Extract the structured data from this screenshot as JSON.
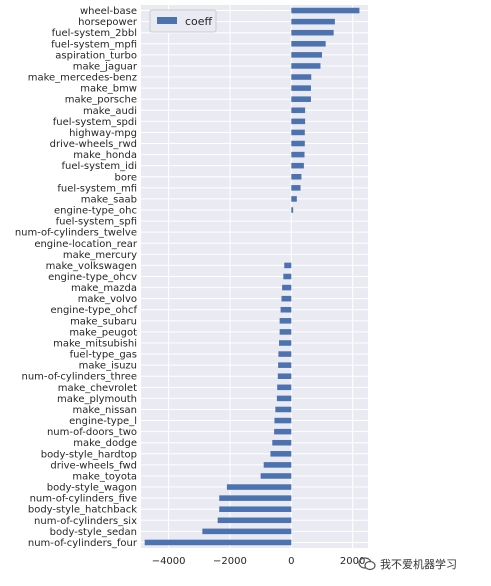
{
  "chart_data": {
    "type": "bar",
    "orientation": "horizontal",
    "legend": {
      "label": "coeff",
      "placement": "top-left"
    },
    "grid": true,
    "xlim": [
      -4900,
      2500
    ],
    "xticks": [
      {
        "value": -4000,
        "label": "−4000"
      },
      {
        "value": -2000,
        "label": "−2000"
      },
      {
        "value": 0,
        "label": "0"
      },
      {
        "value": 2000,
        "label": "2000"
      }
    ],
    "categories": [
      "wheel-base",
      "horsepower",
      "fuel-system_2bbl",
      "fuel-system_mpfi",
      "aspiration_turbo",
      "make_jaguar",
      "make_mercedes-benz",
      "make_bmw",
      "make_porsche",
      "make_audi",
      "fuel-system_spdi",
      "highway-mpg",
      "drive-wheels_rwd",
      "make_honda",
      "fuel-system_idi",
      "bore",
      "fuel-system_mfi",
      "make_saab",
      "engine-type_ohc",
      "fuel-system_spfi",
      "num-of-cylinders_twelve",
      "engine-location_rear",
      "make_mercury",
      "make_volkswagen",
      "engine-type_ohcv",
      "make_mazda",
      "make_volvo",
      "engine-type_ohcf",
      "make_subaru",
      "make_peugot",
      "make_mitsubishi",
      "fuel-type_gas",
      "make_isuzu",
      "num-of-cylinders_three",
      "make_chevrolet",
      "make_plymouth",
      "make_nissan",
      "engine-type_l",
      "num-of-doors_two",
      "make_dodge",
      "body-style_hardtop",
      "drive-wheels_fwd",
      "make_toyota",
      "body-style_wagon",
      "num-of-cylinders_five",
      "body-style_hatchback",
      "num-of-cylinders_six",
      "body-style_sedan",
      "num-of-cylinders_four"
    ],
    "series": [
      {
        "name": "coeff",
        "color": "#4c72b0",
        "values": [
          2220,
          1420,
          1380,
          1120,
          1000,
          950,
          650,
          640,
          640,
          450,
          450,
          440,
          440,
          430,
          410,
          330,
          300,
          180,
          60,
          0,
          0,
          0,
          0,
          -230,
          -260,
          -300,
          -320,
          -350,
          -380,
          -380,
          -400,
          -420,
          -430,
          -440,
          -460,
          -470,
          -520,
          -550,
          -560,
          -620,
          -680,
          -900,
          -1000,
          -2100,
          -2350,
          -2350,
          -2400,
          -2900,
          -4780
        ]
      }
    ]
  },
  "watermark": {
    "text": "我不爱机器学习",
    "icon": "wechat-icon"
  }
}
